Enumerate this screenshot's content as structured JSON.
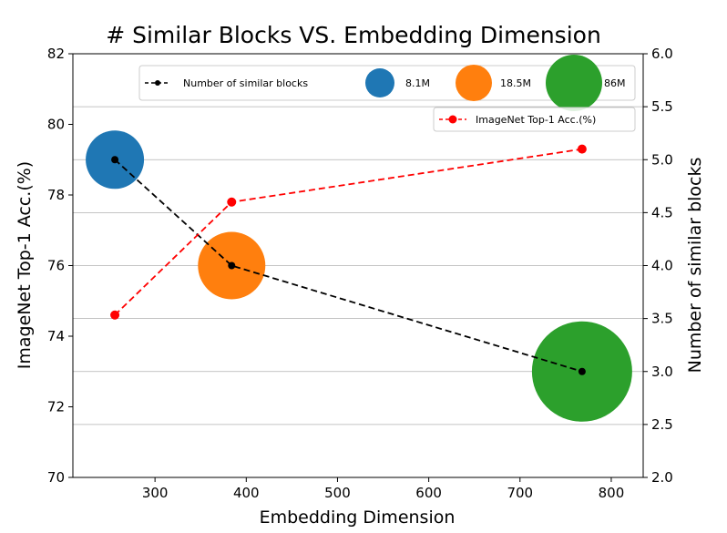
{
  "chart_data": {
    "type": "scatter",
    "title": "# Similar Blocks VS. Embedding Dimension",
    "xlabel": "Embedding Dimension",
    "ylabel": "ImageNet Top-1 Acc.(%)",
    "y2label": "Number of similar blocks",
    "xlim": [
      210,
      835
    ],
    "ylim": [
      70,
      82
    ],
    "y2lim": [
      2.0,
      6.0
    ],
    "xticks": [
      "300",
      "400",
      "500",
      "600",
      "700",
      "800"
    ],
    "yticks": [
      "70",
      "72",
      "74",
      "76",
      "78",
      "80",
      "82"
    ],
    "y2ticks": [
      "2.0",
      "2.5",
      "3.0",
      "3.5",
      "4.0",
      "4.5",
      "5.0",
      "5.5",
      "6.0"
    ],
    "grid": "horizontal, right axis",
    "series": [
      {
        "name": "Number of similar blocks",
        "axis": "right",
        "color": "#000000",
        "style": "dashed line with dot markers",
        "x": [
          256,
          384,
          768
        ],
        "y": [
          5.0,
          4.0,
          3.0
        ]
      },
      {
        "name": "ImageNet Top-1 Acc.(%)",
        "axis": "left",
        "color": "#ff0000",
        "style": "dashed line with dot markers",
        "x": [
          256,
          384,
          768
        ],
        "y": [
          74.6,
          77.8,
          79.3
        ]
      }
    ],
    "bubbles": [
      {
        "label": "8.1M",
        "x": 256,
        "y2": 5.0,
        "color": "#1f77b4"
      },
      {
        "label": "18.5M",
        "x": 384,
        "y2": 4.0,
        "color": "#ff7f0e"
      },
      {
        "label": "86M",
        "x": 768,
        "y2": 3.0,
        "color": "#2ca02c"
      }
    ],
    "legend": {
      "placement": "top",
      "entries": [
        "Number of similar blocks",
        "8.1M",
        "18.5M",
        "86M"
      ]
    },
    "legend2": {
      "placement": "top-right",
      "entries": [
        "ImageNet Top-1 Acc.(%)"
      ]
    }
  }
}
